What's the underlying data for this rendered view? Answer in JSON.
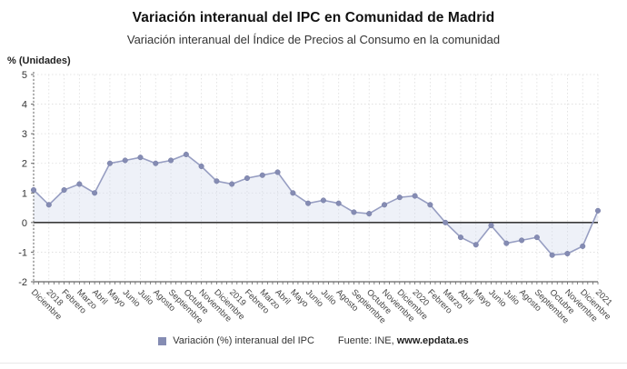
{
  "header": {
    "title": "Variación interanual del IPC en Comunidad de Madrid",
    "subtitle": "Variación interanual del Índice de Precios al Consumo en la comunidad"
  },
  "chart_data": {
    "type": "area",
    "title": "Variación interanual del IPC en Comunidad de Madrid",
    "unit_label": "% (Unidades)",
    "x": [
      "Diciembre",
      "2018",
      "Febrero",
      "Marzo",
      "Abril",
      "Mayo",
      "Junio",
      "Julio",
      "Agosto",
      "Septiembre",
      "Octubre",
      "Noviembre",
      "Diciembre",
      "2019",
      "Febrero",
      "Marzo",
      "Abril",
      "Mayo",
      "Junio",
      "Julio",
      "Agosto",
      "Septiembre",
      "Octubre",
      "Noviembre",
      "Diciembre",
      "2020",
      "Febrero",
      "Marzo",
      "Abril",
      "Mayo",
      "Junio",
      "Julio",
      "Agosto",
      "Septiembre",
      "Octubre",
      "Noviembre",
      "Diciembre",
      "2021"
    ],
    "series": [
      {
        "name": "Variación (%) interanual del IPC",
        "values": [
          1.1,
          0.6,
          1.1,
          1.3,
          1.0,
          2.0,
          2.1,
          2.2,
          2.0,
          2.1,
          2.3,
          1.9,
          1.4,
          1.3,
          1.5,
          1.6,
          1.7,
          1.0,
          0.65,
          0.75,
          0.65,
          0.35,
          0.3,
          0.6,
          0.85,
          0.9,
          0.6,
          0.0,
          -0.5,
          -0.75,
          -0.1,
          -0.7,
          -0.6,
          -0.5,
          -1.1,
          -1.05,
          -0.8,
          0.4
        ]
      }
    ],
    "ylim": [
      -2,
      5
    ],
    "yticks": [
      5,
      4,
      3,
      2,
      1,
      0,
      -1,
      -2
    ],
    "grid": true,
    "legend_position": "bottom",
    "colors": {
      "line": "#979ec2",
      "marker_fill": "#858cb3",
      "marker_stroke": "#767da6",
      "area_fill": "#cdd6ec",
      "area_opacity": 0.35,
      "zero_line": "#3a3a3a",
      "axis": "#666666",
      "grid": "#dddddd",
      "tick_label": "#444444"
    }
  },
  "footer": {
    "legend_label": "Variación (%) interanual del IPC",
    "source_prefix": "Fuente: INE,",
    "source_site": "www.epdata.es"
  }
}
